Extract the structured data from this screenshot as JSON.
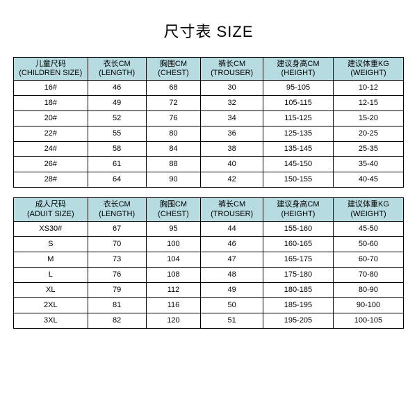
{
  "title": "尺寸表 SIZE",
  "header_bg": "#b6dbe0",
  "columns": [
    {
      "cn": "儿童尺码",
      "en": "(CHILDREN SIZE)"
    },
    {
      "cn": "衣长CM",
      "en": "(LENGTH)"
    },
    {
      "cn": "胸围CM",
      "en": "(CHEST)"
    },
    {
      "cn": "裤长CM",
      "en": "(TROUSER)"
    },
    {
      "cn": "建议身高CM",
      "en": "(HEIGHT)"
    },
    {
      "cn": "建议体重KG",
      "en": "(WEIGHT)"
    }
  ],
  "columns2": [
    {
      "cn": "成人尺码",
      "en": "(ADUIT SIZE)"
    },
    {
      "cn": "衣长CM",
      "en": "(LENGTH)"
    },
    {
      "cn": "胸围CM",
      "en": "(CHEST)"
    },
    {
      "cn": "裤长CM",
      "en": "(TROUSER)"
    },
    {
      "cn": "建议身高CM",
      "en": "(HEIGHT)"
    },
    {
      "cn": "建议体重KG",
      "en": "(WEIGHT)"
    }
  ],
  "children_rows": [
    [
      "16#",
      "46",
      "68",
      "30",
      "95-105",
      "10-12"
    ],
    [
      "18#",
      "49",
      "72",
      "32",
      "105-115",
      "12-15"
    ],
    [
      "20#",
      "52",
      "76",
      "34",
      "115-125",
      "15-20"
    ],
    [
      "22#",
      "55",
      "80",
      "36",
      "125-135",
      "20-25"
    ],
    [
      "24#",
      "58",
      "84",
      "38",
      "135-145",
      "25-35"
    ],
    [
      "26#",
      "61",
      "88",
      "40",
      "145-150",
      "35-40"
    ],
    [
      "28#",
      "64",
      "90",
      "42",
      "150-155",
      "40-45"
    ]
  ],
  "adult_rows": [
    [
      "XS30#",
      "67",
      "95",
      "44",
      "155-160",
      "45-50"
    ],
    [
      "S",
      "70",
      "100",
      "46",
      "160-165",
      "50-60"
    ],
    [
      "M",
      "73",
      "104",
      "47",
      "165-175",
      "60-70"
    ],
    [
      "L",
      "76",
      "108",
      "48",
      "175-180",
      "70-80"
    ],
    [
      "XL",
      "79",
      "112",
      "49",
      "180-185",
      "80-90"
    ],
    [
      "2XL",
      "81",
      "116",
      "50",
      "185-195",
      "90-100"
    ],
    [
      "3XL",
      "82",
      "120",
      "51",
      "195-205",
      "100-105"
    ]
  ]
}
